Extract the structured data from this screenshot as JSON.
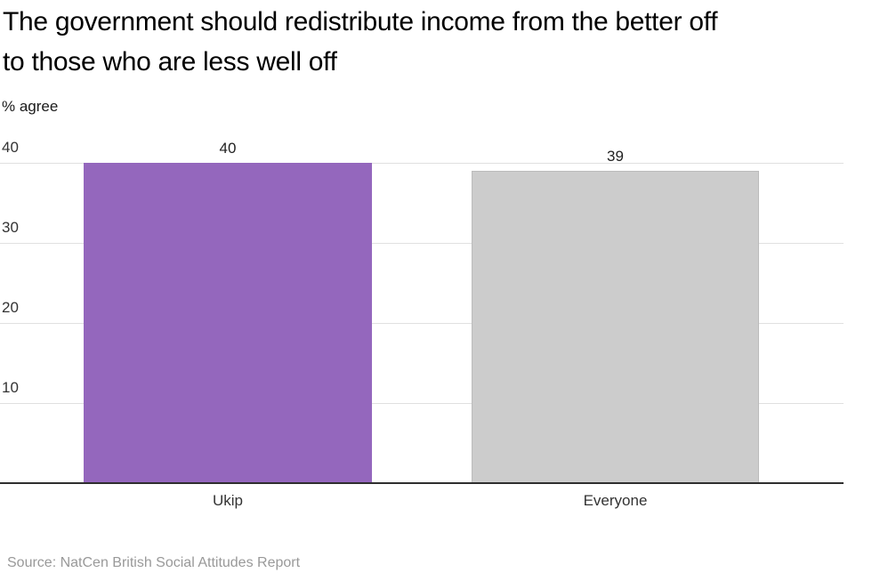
{
  "header": {
    "title_lines": [
      "The government should redistribute income from the better off",
      "to those who are less well off"
    ]
  },
  "chart_data": {
    "type": "bar",
    "title": "The government should redistribute income from the better off to those who are less well off",
    "ylabel": "% agree",
    "xlabel": "",
    "categories": [
      "Ukip",
      "Everyone"
    ],
    "values": [
      40,
      39
    ],
    "yticks": [
      10,
      20,
      30,
      40
    ],
    "ylim": [
      0,
      42
    ],
    "grid": "horizontal",
    "legend": "none",
    "bar_colors": [
      "#9467bd",
      "#cccccc"
    ],
    "bar_border_colors": [
      "",
      "#bcbcbc"
    ]
  },
  "footer": {
    "source": "Source: NatCen British Social Attitudes Report"
  }
}
